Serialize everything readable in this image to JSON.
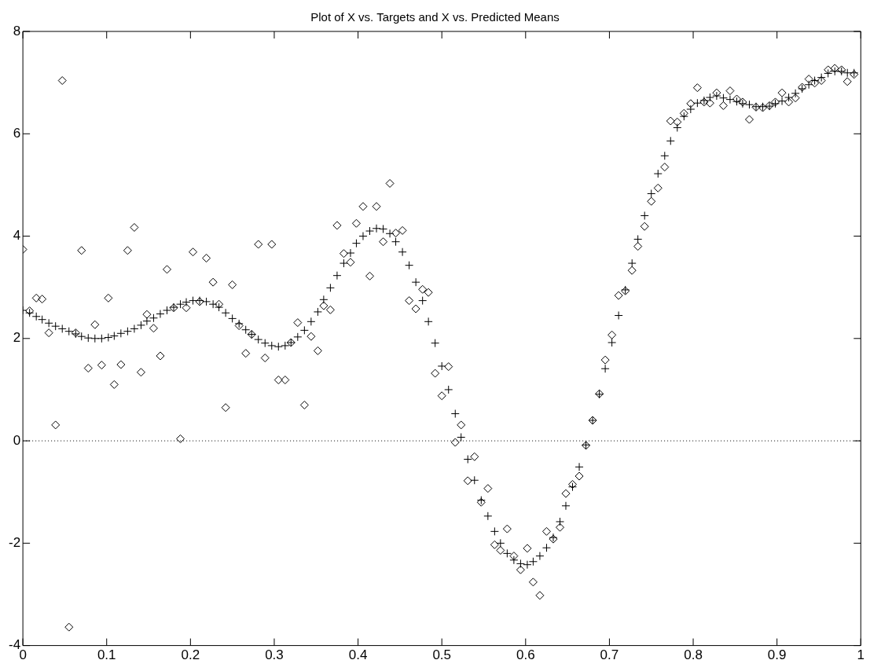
{
  "chart_data": {
    "type": "scatter",
    "title": "Plot of X vs. Targets and X vs. Predicted Means",
    "x": [
      0,
      0.008,
      0.016,
      0.023,
      0.031,
      0.039,
      0.047,
      0.055,
      0.063,
      0.07,
      0.078,
      0.086,
      0.094,
      0.102,
      0.109,
      0.117,
      0.125,
      0.133,
      0.141,
      0.148,
      0.156,
      0.164,
      0.172,
      0.18,
      0.188,
      0.195,
      0.203,
      0.211,
      0.219,
      0.227,
      0.234,
      0.242,
      0.25,
      0.258,
      0.266,
      0.273,
      0.281,
      0.289,
      0.297,
      0.305,
      0.313,
      0.32,
      0.328,
      0.336,
      0.344,
      0.352,
      0.359,
      0.367,
      0.375,
      0.383,
      0.391,
      0.398,
      0.406,
      0.414,
      0.422,
      0.43,
      0.438,
      0.445,
      0.453,
      0.461,
      0.469,
      0.477,
      0.484,
      0.492,
      0.5,
      0.508,
      0.516,
      0.523,
      0.531,
      0.539,
      0.547,
      0.555,
      0.563,
      0.57,
      0.578,
      0.586,
      0.594,
      0.602,
      0.609,
      0.617,
      0.625,
      0.633,
      0.641,
      0.648,
      0.656,
      0.664,
      0.672,
      0.68,
      0.688,
      0.695,
      0.703,
      0.711,
      0.719,
      0.727,
      0.734,
      0.742,
      0.75,
      0.758,
      0.766,
      0.773,
      0.781,
      0.789,
      0.797,
      0.805,
      0.813,
      0.82,
      0.828,
      0.836,
      0.844,
      0.852,
      0.859,
      0.867,
      0.875,
      0.883,
      0.891,
      0.898,
      0.906,
      0.914,
      0.922,
      0.93,
      0.938,
      0.945,
      0.953,
      0.961,
      0.969,
      0.977,
      0.984,
      0.992
    ],
    "series": [
      {
        "color": "#000000",
        "marker": "diamond",
        "values": [
          3.74,
          2.54,
          2.79,
          2.77,
          2.11,
          0.31,
          7.04,
          -3.64,
          2.11,
          3.72,
          1.42,
          2.27,
          1.48,
          2.79,
          1.1,
          1.49,
          3.72,
          4.17,
          1.34,
          2.47,
          2.2,
          1.66,
          3.35,
          2.6,
          0.04,
          2.6,
          3.69,
          2.72,
          3.57,
          3.1,
          2.67,
          0.65,
          3.05,
          2.25,
          1.71,
          2.08,
          3.84,
          1.62,
          3.84,
          1.19,
          1.19,
          1.92,
          2.31,
          0.7,
          2.04,
          1.76,
          2.64,
          2.56,
          4.21,
          3.66,
          3.49,
          4.25,
          4.58,
          3.22,
          4.58,
          3.89,
          5.03,
          4.06,
          4.11,
          2.74,
          2.58,
          2.96,
          2.9,
          1.32,
          0.88,
          1.45,
          -0.03,
          0.31,
          -0.78,
          -0.31,
          -1.2,
          -0.93,
          -2.03,
          -2.14,
          -1.72,
          -2.25,
          -2.52,
          -2.1,
          -2.76,
          -3.02,
          -1.77,
          -1.92,
          -1.69,
          -1.03,
          -0.85,
          -0.69,
          -0.09,
          0.4,
          0.92,
          1.58,
          2.07,
          2.84,
          2.93,
          3.33,
          3.8,
          4.19,
          4.68,
          4.94,
          5.35,
          6.25,
          6.23,
          6.4,
          6.59,
          6.9,
          6.62,
          6.6,
          6.8,
          6.55,
          6.84,
          6.68,
          6.62,
          6.28,
          6.52,
          6.51,
          6.55,
          6.62,
          6.8,
          6.62,
          6.7,
          6.91,
          7.07,
          6.99,
          7.04,
          7.25,
          7.28,
          7.25,
          7.02,
          7.16
        ]
      },
      {
        "color": "#000000",
        "marker": "cross",
        "values": [
          2.55,
          2.5,
          2.43,
          2.37,
          2.3,
          2.24,
          2.19,
          2.14,
          2.09,
          2.04,
          2.01,
          2.0,
          2.0,
          2.02,
          2.05,
          2.1,
          2.14,
          2.19,
          2.26,
          2.34,
          2.4,
          2.48,
          2.55,
          2.61,
          2.67,
          2.71,
          2.74,
          2.74,
          2.72,
          2.67,
          2.61,
          2.5,
          2.39,
          2.29,
          2.17,
          2.08,
          1.98,
          1.91,
          1.86,
          1.84,
          1.86,
          1.92,
          2.03,
          2.16,
          2.33,
          2.52,
          2.76,
          2.99,
          3.23,
          3.47,
          3.67,
          3.86,
          4.0,
          4.1,
          4.15,
          4.14,
          4.05,
          3.89,
          3.69,
          3.43,
          3.1,
          2.74,
          2.33,
          1.91,
          1.46,
          1.0,
          0.53,
          0.07,
          -0.36,
          -0.77,
          -1.16,
          -1.47,
          -1.77,
          -2.0,
          -2.2,
          -2.33,
          -2.4,
          -2.42,
          -2.36,
          -2.25,
          -2.09,
          -1.89,
          -1.58,
          -1.27,
          -0.9,
          -0.51,
          -0.08,
          0.4,
          0.91,
          1.41,
          1.92,
          2.45,
          2.95,
          3.47,
          3.94,
          4.4,
          4.83,
          5.22,
          5.57,
          5.86,
          6.12,
          6.34,
          6.48,
          6.6,
          6.65,
          6.71,
          6.74,
          6.7,
          6.67,
          6.63,
          6.59,
          6.57,
          6.53,
          6.53,
          6.54,
          6.59,
          6.64,
          6.71,
          6.79,
          6.88,
          6.96,
          7.04,
          7.1,
          7.18,
          7.22,
          7.22,
          7.19,
          7.19
        ]
      }
    ],
    "xlim": [
      0,
      1
    ],
    "xticks": [
      0,
      0.1,
      0.2,
      0.3,
      0.4,
      0.5,
      0.6,
      0.7,
      0.8,
      0.9,
      1
    ],
    "ylim": [
      -4,
      8
    ],
    "yticks": [
      -4,
      -2,
      0,
      2,
      4,
      6,
      8
    ],
    "ref_lines": [
      {
        "axis": "y",
        "value": 0,
        "line_style": "dotted",
        "color": "#000000"
      }
    ],
    "grid": false,
    "legend": false
  }
}
